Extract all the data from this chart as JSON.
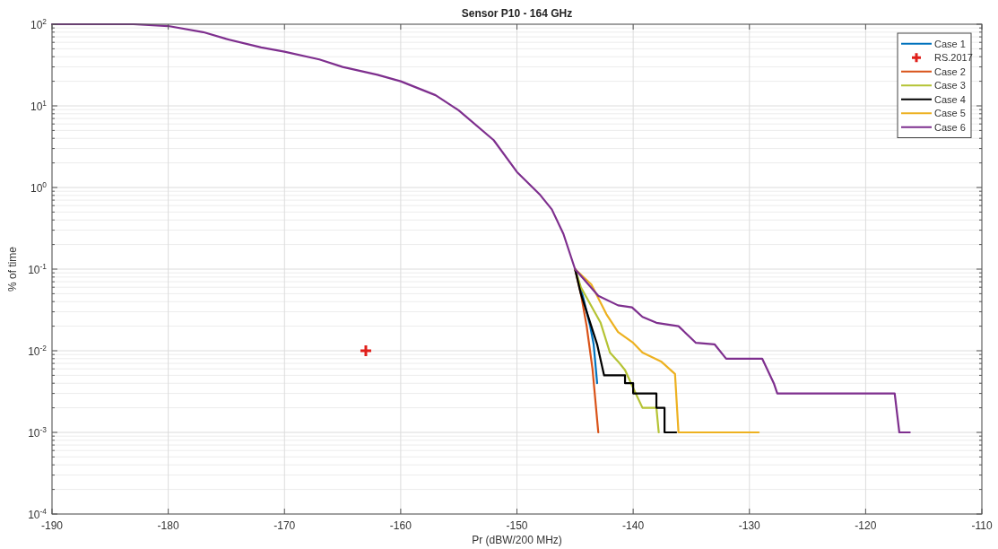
{
  "chart_data": {
    "type": "line",
    "title": "Sensor P10 - 164 GHz",
    "xlabel": "Pr (dBW/200 MHz)",
    "ylabel": "% of time",
    "log": "y",
    "grid": true,
    "legend": "top right",
    "marker": "none",
    "line_style": "solid",
    "xlim": [
      -190,
      -110
    ],
    "xticks": [
      -190,
      -180,
      -170,
      -160,
      -150,
      -140,
      -130,
      -120,
      -110
    ],
    "ylim": [
      0.0001,
      100
    ],
    "yticks": [
      {
        "value": 0.0001,
        "label": "10$^{-4}$"
      },
      {
        "value": 0.001,
        "label": "10$^{-3}$"
      },
      {
        "value": 0.01,
        "label": "10$^{-2}$"
      },
      {
        "value": 0.1,
        "label": "10$^{-1}$"
      },
      {
        "value": 1,
        "label": "10$^{0}$"
      },
      {
        "value": 10,
        "label": "10$^{1}$"
      },
      {
        "value": 100,
        "label": "10$^{2}$"
      }
    ],
    "series": [
      {
        "name": "Case 1",
        "color": "#0072bd",
        "x": [
          -145,
          -144.3,
          -143.7,
          -143.4,
          -143.1
        ],
        "values": [
          0.1,
          0.045,
          0.02,
          0.012,
          0.004
        ]
      },
      {
        "name": "RS.2017",
        "type": "scatter",
        "marker": "cross",
        "color": "#e0201b",
        "x": [
          -163
        ],
        "values": [
          0.01
        ]
      },
      {
        "name": "Case 2",
        "color": "#d95319",
        "x": [
          -145,
          -144.5,
          -144,
          -143.5,
          -143
        ],
        "values": [
          0.1,
          0.05,
          0.02,
          0.006,
          0.001
        ]
      },
      {
        "name": "Case 3",
        "color": "#b5c334",
        "x": [
          -145,
          -144.5,
          -142.8,
          -142,
          -141.3,
          -140.7,
          -140,
          -139.2,
          -138,
          -137.8
        ],
        "values": [
          0.1,
          0.06,
          0.022,
          0.0095,
          0.0074,
          0.0058,
          0.0035,
          0.002,
          0.002,
          0.001
        ]
      },
      {
        "name": "Case 4",
        "color": "#000000",
        "x": [
          -145,
          -144.5,
          -143.1,
          -142.5,
          -140.7,
          -140.7,
          -140,
          -140,
          -138,
          -138,
          -137.3,
          -137.3,
          -136.3
        ],
        "values": [
          0.1,
          0.05,
          0.012,
          0.005,
          0.005,
          0.004,
          0.004,
          0.003,
          0.003,
          0.002,
          0.002,
          0.001,
          0.001
        ]
      },
      {
        "name": "Case 5",
        "color": "#edb120",
        "x": [
          -145,
          -143.6,
          -142.3,
          -141.3,
          -140,
          -139.2,
          -137.6,
          -136.4,
          -136.1,
          -129.2
        ],
        "values": [
          0.1,
          0.065,
          0.028,
          0.017,
          0.0125,
          0.0095,
          0.0074,
          0.0052,
          0.001,
          0.001
        ]
      },
      {
        "name": "Case 6",
        "color": "#7e2f8e",
        "x": [
          -190,
          -183,
          -180,
          -177,
          -175,
          -172,
          -170,
          -167,
          -165,
          -162,
          -160,
          -157,
          -155,
          -152,
          -150,
          -148,
          -147,
          -146,
          -145,
          -143,
          -141.3,
          -140.1,
          -139.2,
          -138,
          -136.1,
          -134.6,
          -133,
          -132,
          -128.9,
          -127.9,
          -127.6,
          -117.5,
          -117.1,
          -116.2
        ],
        "values": [
          100,
          100,
          95,
          80,
          66,
          52,
          46,
          37,
          30,
          24,
          20,
          13.5,
          8.8,
          3.8,
          1.55,
          0.81,
          0.54,
          0.27,
          0.1,
          0.047,
          0.036,
          0.034,
          0.026,
          0.022,
          0.02,
          0.0125,
          0.012,
          0.008,
          0.008,
          0.004,
          0.003,
          0.003,
          0.001,
          0.001
        ]
      }
    ]
  }
}
